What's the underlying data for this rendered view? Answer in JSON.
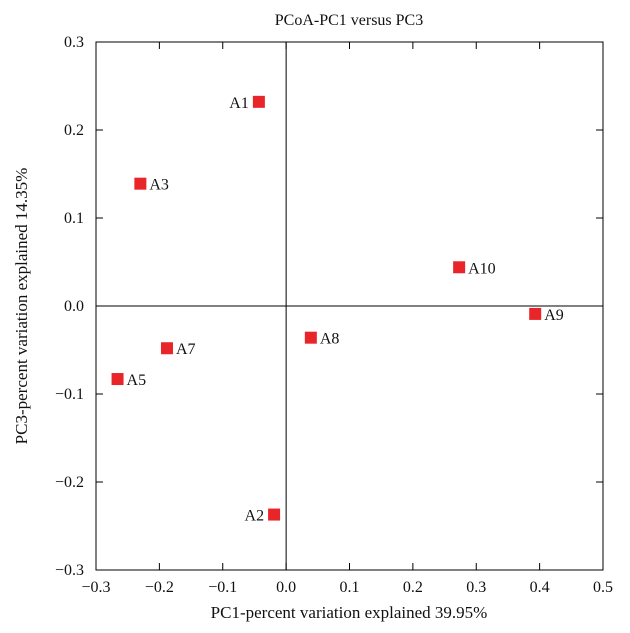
{
  "chart_data": {
    "type": "scatter",
    "title": "PCoA-PC1 versus PC3",
    "xlabel": "PC1-percent variation explained 39.95%",
    "ylabel": "PC3-percent variation explained 14.35%",
    "xlim": [
      -0.3,
      0.5
    ],
    "ylim": [
      -0.3,
      0.3
    ],
    "xticks": [
      -0.3,
      -0.2,
      -0.1,
      0.0,
      0.1,
      0.2,
      0.3,
      0.4,
      0.5
    ],
    "yticks": [
      -0.3,
      -0.2,
      -0.1,
      0.0,
      0.1,
      0.2,
      0.3
    ],
    "xtick_labels": [
      "−0.3",
      "−0.2",
      "−0.1",
      "0.0",
      "0.1",
      "0.2",
      "0.3",
      "0.4",
      "0.5"
    ],
    "ytick_labels": [
      "−0.3",
      "−0.2",
      "−0.1",
      "0.0",
      "0.1",
      "0.2",
      "0.3"
    ],
    "grid": false,
    "zero_lines": true,
    "marker_color": "#e8262a",
    "points": [
      {
        "label": "A1",
        "x": -0.043,
        "y": 0.232,
        "label_side": "left"
      },
      {
        "label": "A3",
        "x": -0.23,
        "y": 0.139,
        "label_side": "right"
      },
      {
        "label": "A10",
        "x": 0.273,
        "y": 0.044,
        "label_side": "right"
      },
      {
        "label": "A9",
        "x": 0.393,
        "y": -0.009,
        "label_side": "right"
      },
      {
        "label": "A8",
        "x": 0.039,
        "y": -0.036,
        "label_side": "right"
      },
      {
        "label": "A7",
        "x": -0.188,
        "y": -0.048,
        "label_side": "right"
      },
      {
        "label": "A5",
        "x": -0.266,
        "y": -0.083,
        "label_side": "right"
      },
      {
        "label": "A2",
        "x": -0.019,
        "y": -0.237,
        "label_side": "left"
      }
    ]
  }
}
